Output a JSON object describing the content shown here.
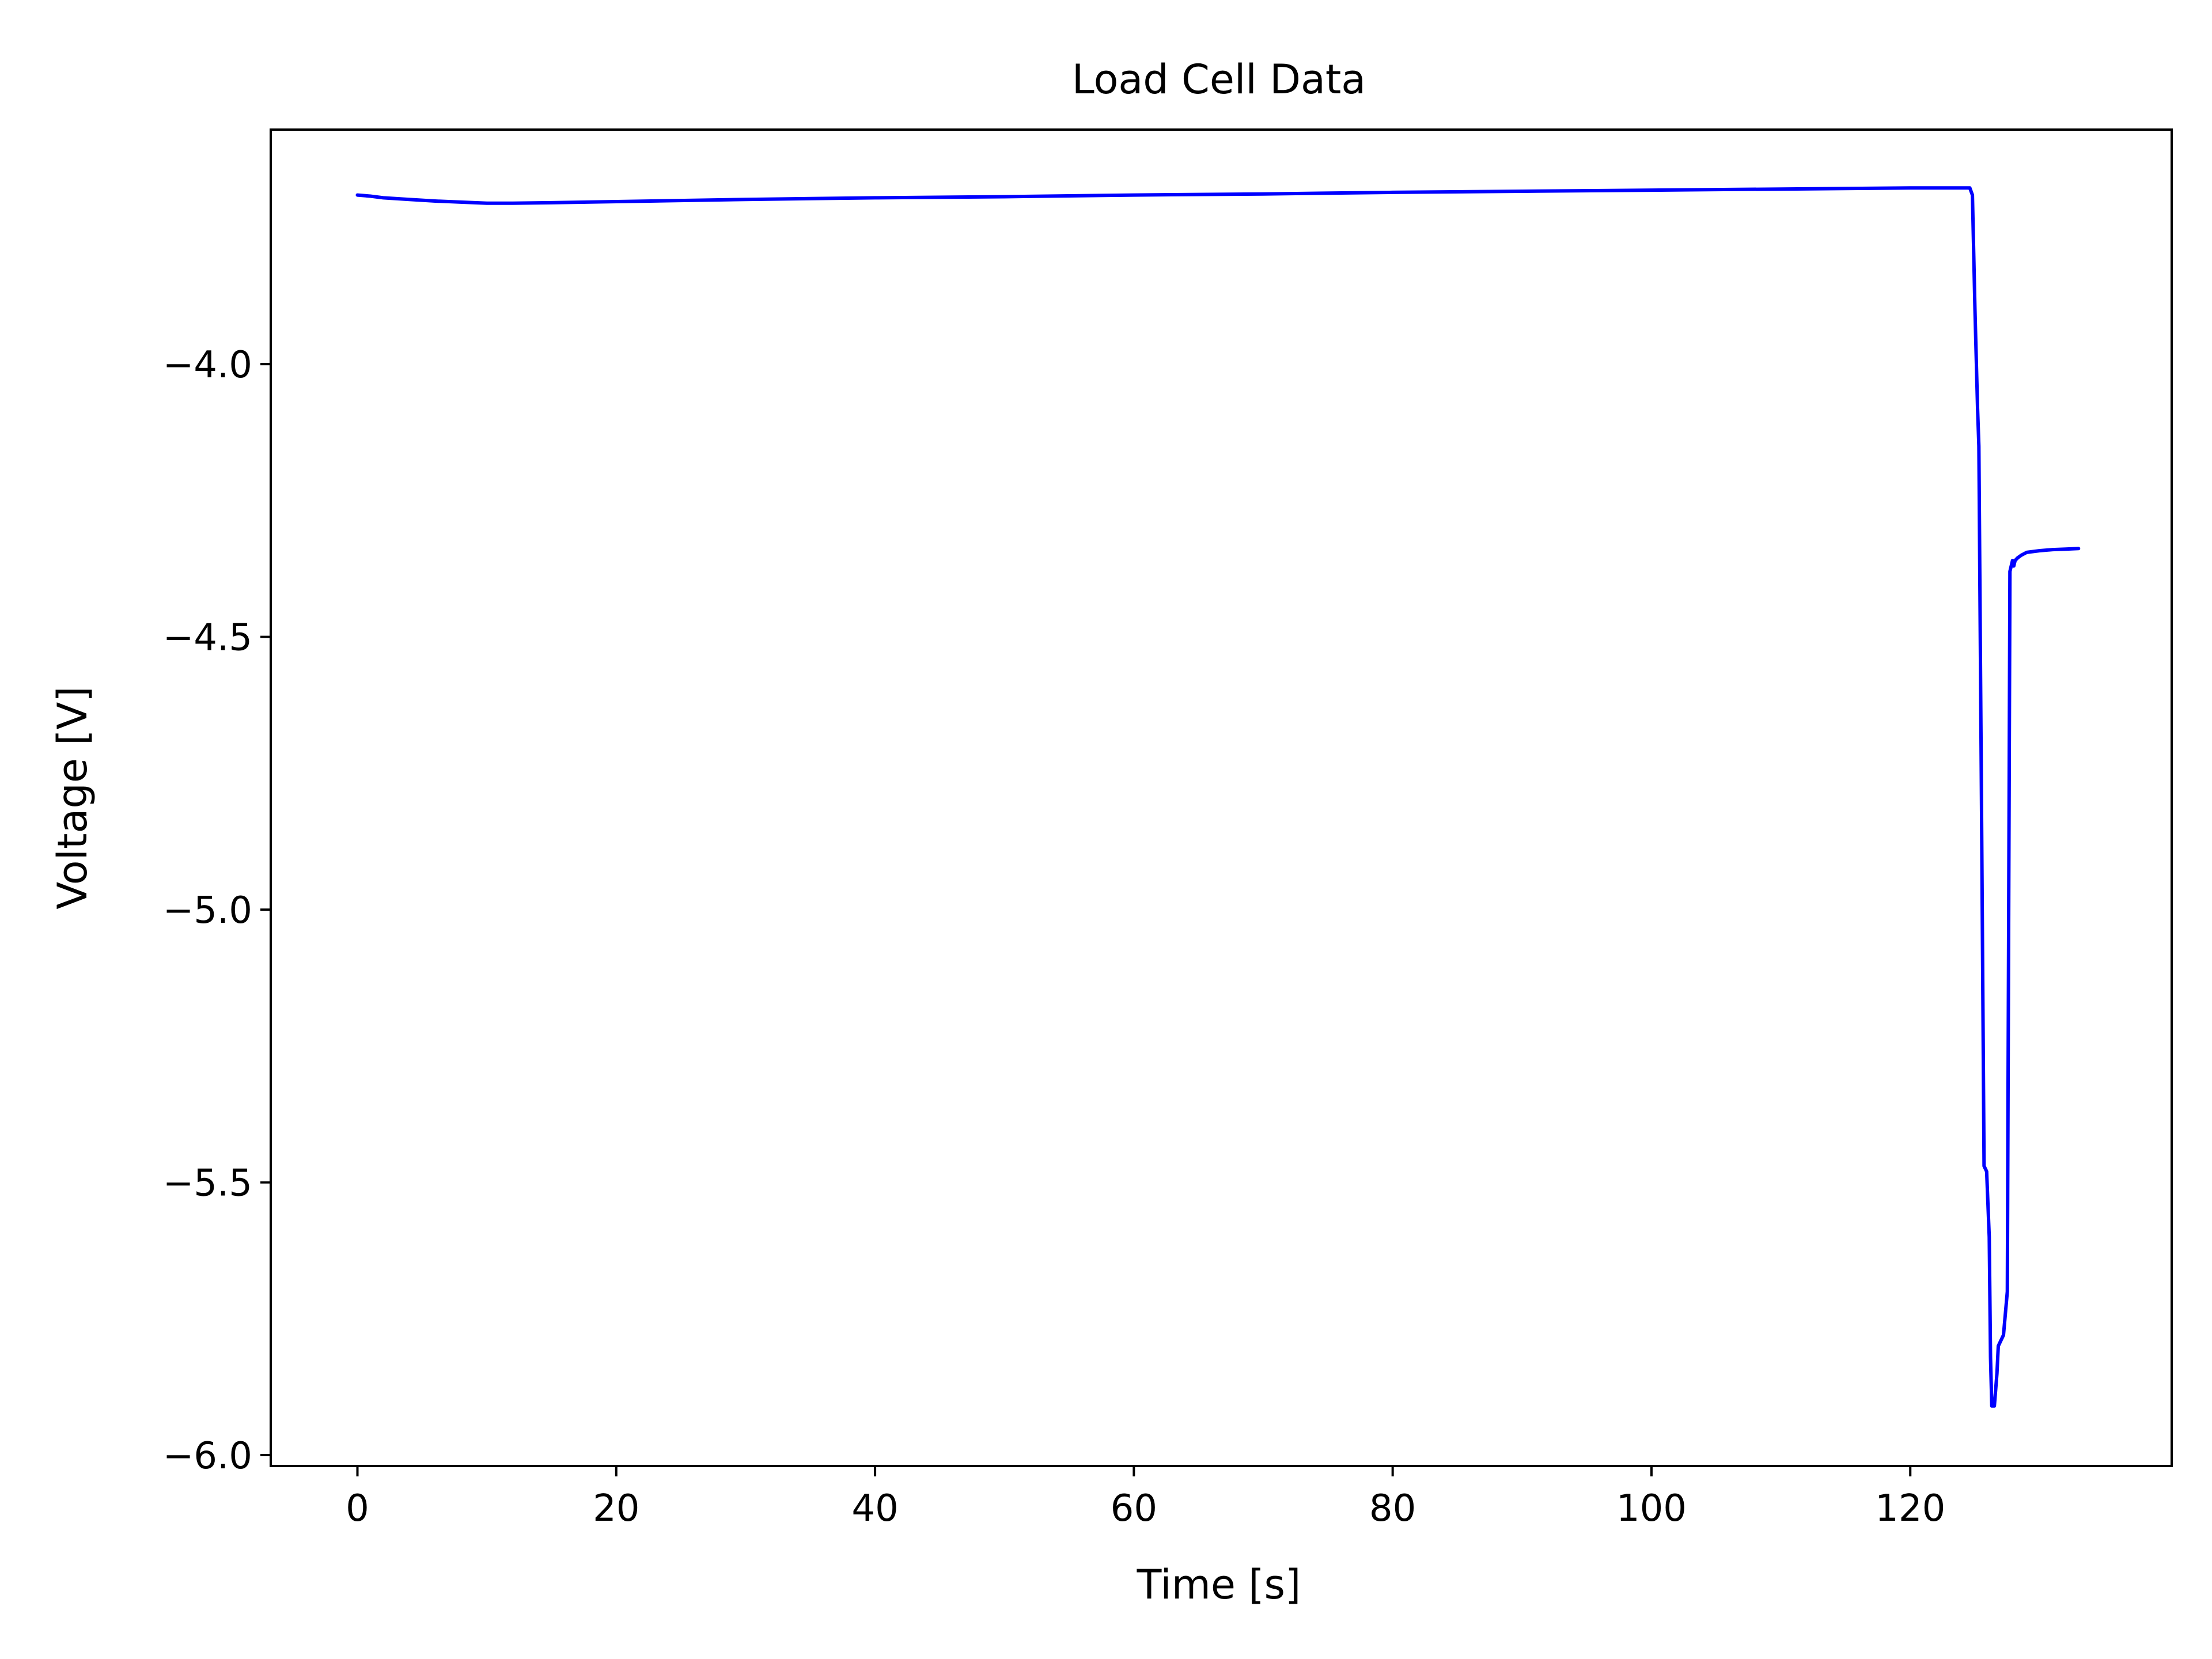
{
  "chart_data": {
    "type": "line",
    "title": "Load Cell Data",
    "xlabel": "Time [s]",
    "ylabel": "Voltage [V]",
    "xlim": [
      -6.7,
      140.2
    ],
    "ylim": [
      -6.02,
      -3.57
    ],
    "xticks": [
      0,
      20,
      40,
      60,
      80,
      100,
      120
    ],
    "xtick_labels": [
      "0",
      "20",
      "40",
      "60",
      "80",
      "100",
      "120"
    ],
    "yticks": [
      -4.0,
      -4.5,
      -5.0,
      -5.5,
      -6.0
    ],
    "ytick_labels": [
      "−4.0",
      "−4.5",
      "−5.0",
      "−5.5",
      "−6.0"
    ],
    "grid": false,
    "series": [
      {
        "color": "#0000ff",
        "x": [
          0,
          1,
          2,
          4,
          6,
          8,
          10,
          12,
          15,
          20,
          30,
          40,
          50,
          60,
          70,
          80,
          90,
          100,
          110,
          120,
          124.6,
          124.8,
          125.0,
          125.2,
          125.3,
          125.5,
          125.7,
          125.9,
          126.1,
          126.2,
          126.3,
          126.5,
          126.7,
          126.8,
          127.0,
          127.2,
          127.5,
          127.7,
          127.9,
          128.0,
          128.1,
          128.3,
          128.6,
          129.0,
          130.0,
          131.0,
          132.0,
          133.0
        ],
        "y": [
          -3.69,
          -3.692,
          -3.695,
          -3.698,
          -3.701,
          -3.703,
          -3.705,
          -3.705,
          -3.704,
          -3.702,
          -3.698,
          -3.695,
          -3.693,
          -3.69,
          -3.688,
          -3.685,
          -3.683,
          -3.681,
          -3.679,
          -3.677,
          -3.677,
          -3.69,
          -3.9,
          -4.08,
          -4.15,
          -4.8,
          -5.47,
          -5.48,
          -5.6,
          -5.82,
          -5.91,
          -5.91,
          -5.85,
          -5.8,
          -5.79,
          -5.78,
          -5.7,
          -4.38,
          -4.36,
          -4.37,
          -4.36,
          -4.355,
          -4.35,
          -4.345,
          -4.342,
          -4.34,
          -4.339,
          -4.338
        ]
      }
    ]
  }
}
